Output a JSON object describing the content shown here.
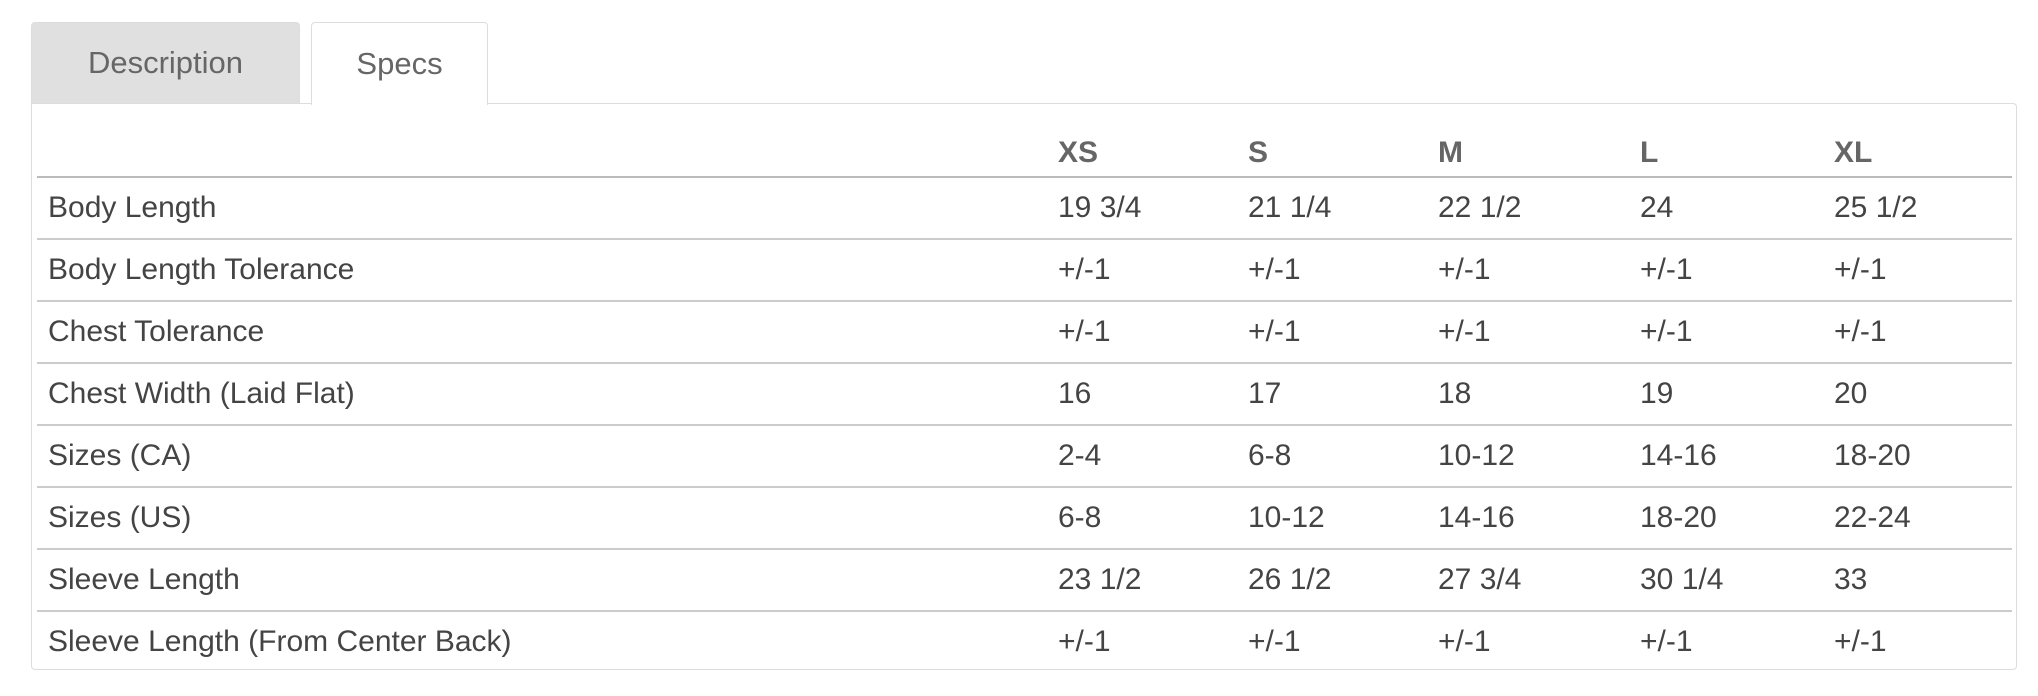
{
  "tabs": [
    {
      "label": "Description",
      "active": false
    },
    {
      "label": "Specs",
      "active": true
    }
  ],
  "specs": {
    "columns": [
      "",
      "XS",
      "S",
      "M",
      "L",
      "XL"
    ],
    "rows": [
      [
        "Body Length",
        "19 3/4",
        "21 1/4",
        "22 1/2",
        "24",
        "25 1/2"
      ],
      [
        "Body Length Tolerance",
        "+/-1",
        "+/-1",
        "+/-1",
        "+/-1",
        "+/-1"
      ],
      [
        "Chest Tolerance",
        "+/-1",
        "+/-1",
        "+/-1",
        "+/-1",
        "+/-1"
      ],
      [
        "Chest Width (Laid Flat)",
        "16",
        "17",
        "18",
        "19",
        "20"
      ],
      [
        "Sizes (CA)",
        "2-4",
        "6-8",
        "10-12",
        "14-16",
        "18-20"
      ],
      [
        "Sizes (US)",
        "6-8",
        "10-12",
        "14-16",
        "18-20",
        "22-24"
      ],
      [
        "Sleeve Length",
        "23 1/2",
        "26 1/2",
        "27 3/4",
        "30 1/4",
        "33"
      ],
      [
        "Sleeve Length (From Center Back)",
        "+/-1",
        "+/-1",
        "+/-1",
        "+/-1",
        "+/-1"
      ]
    ]
  }
}
